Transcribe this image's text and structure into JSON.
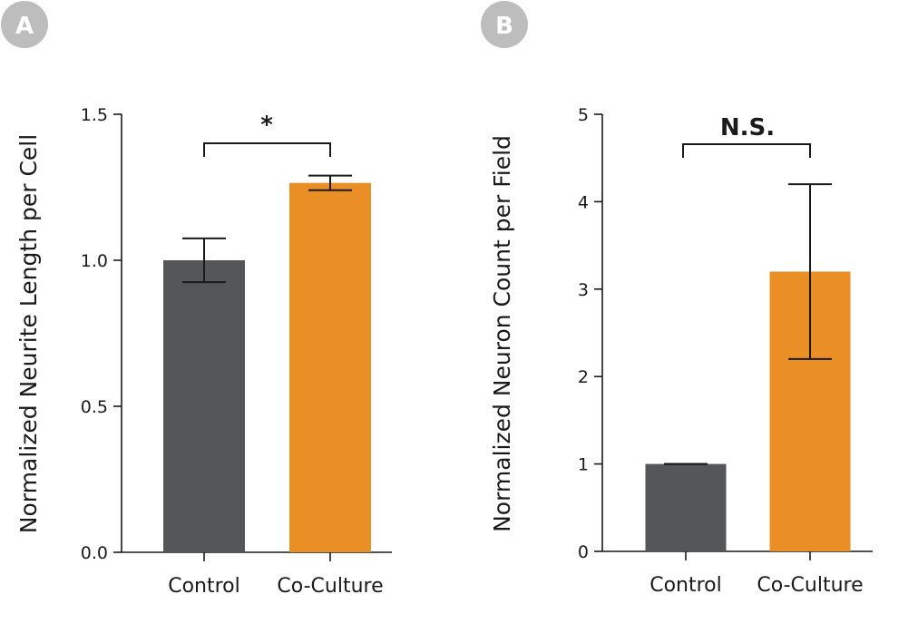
{
  "colors": {
    "control": "#545658",
    "coculture": "#e98f25",
    "badge": "#bdbdbd"
  },
  "chart_data": [
    {
      "type": "bar",
      "panel_label": "A",
      "categories": [
        "Control",
        "Co-Culture"
      ],
      "values": [
        1.0,
        1.265
      ],
      "error": [
        0.075,
        0.025
      ],
      "ylabel": "Normalized Neurite Length per Cell",
      "ylim": [
        0,
        1.5
      ],
      "yticks": [
        "0.0",
        "0.5",
        "1.0",
        "1.5"
      ],
      "significance": "*",
      "grid": false
    },
    {
      "type": "bar",
      "panel_label": "B",
      "categories": [
        "Control",
        "Co-Culture"
      ],
      "values": [
        1.0,
        3.2
      ],
      "error": [
        0.0,
        1.0
      ],
      "ylabel": "Normalized Neuron Count per Field",
      "ylim": [
        0,
        5
      ],
      "yticks": [
        "0",
        "1",
        "2",
        "3",
        "4",
        "5"
      ],
      "significance": "N.S.",
      "grid": false
    }
  ]
}
